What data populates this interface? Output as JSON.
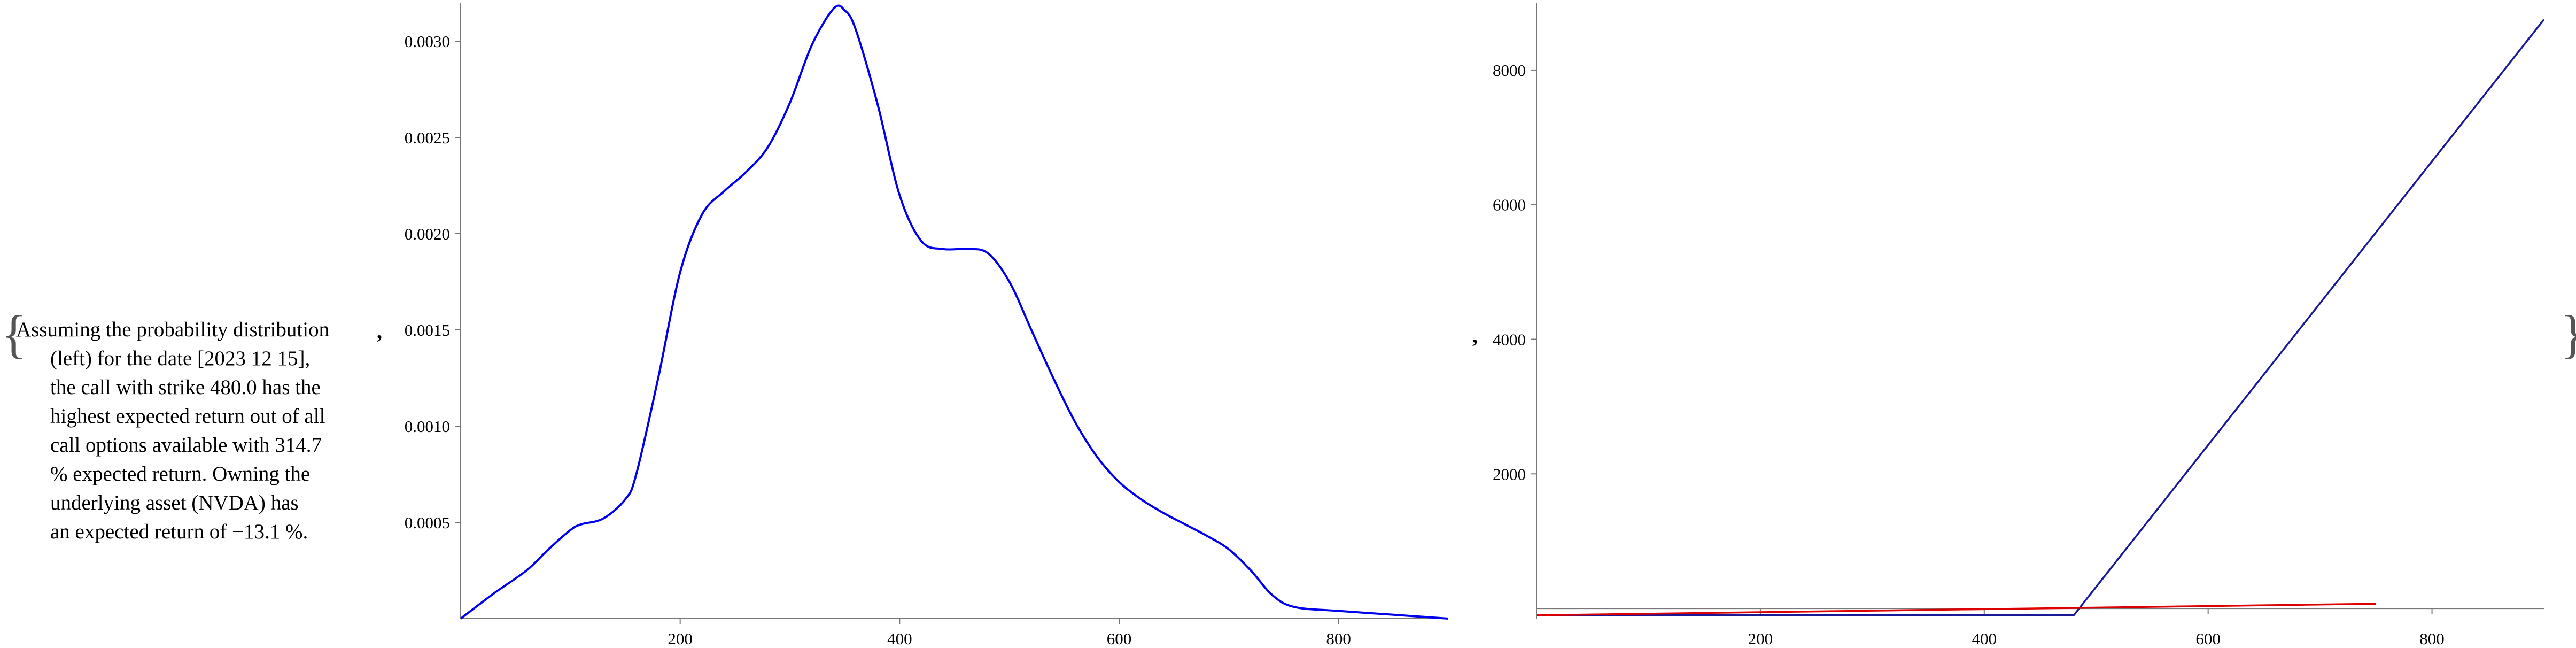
{
  "text": {
    "lines": [
      "Assuming the probability distribution",
      "(left) for the date [2023 12 15],",
      "the call with strike 480.0 has the",
      "highest expected return out of all",
      "call options available with 314.7",
      "% expected return. Owning the",
      "underlying asset (NVDA) has",
      "an expected return of −13.1 %."
    ],
    "open_brace": "{",
    "close_brace": "}",
    "separator": ","
  },
  "colors": {
    "density": "#0000ee",
    "payoff": "#1a1a99",
    "stock": "#dd0000",
    "axis": "#777777"
  },
  "chart_data": [
    {
      "type": "line",
      "title": "",
      "xlabel": "",
      "ylabel": "",
      "xlim": [
        0,
        900
      ],
      "ylim": [
        0,
        0.0032
      ],
      "x_ticks": [
        "200",
        "400",
        "600",
        "800"
      ],
      "y_ticks": [
        "0.0005",
        "0.0010",
        "0.0015",
        "0.0020",
        "0.0025",
        "0.0030"
      ],
      "series": [
        {
          "x": [
            0,
            30,
            60,
            80,
            100,
            110,
            130,
            150,
            160,
            180,
            200,
            220,
            240,
            260,
            280,
            300,
            320,
            340,
            350,
            360,
            380,
            400,
            420,
            440,
            460,
            480,
            500,
            520,
            540,
            560,
            580,
            600,
            620,
            640,
            660,
            680,
            700,
            720,
            740,
            760,
            800,
            850,
            900
          ],
          "y": [
            0.0,
            0.00013,
            0.00025,
            0.00036,
            0.00046,
            0.00049,
            0.00052,
            0.00062,
            0.00075,
            0.00125,
            0.0018,
            0.0021,
            0.00222,
            0.00232,
            0.00245,
            0.00268,
            0.00298,
            0.00317,
            0.00316,
            0.00306,
            0.00267,
            0.0022,
            0.00196,
            0.00192,
            0.00192,
            0.0019,
            0.00175,
            0.0015,
            0.00125,
            0.00102,
            0.00084,
            0.00071,
            0.00062,
            0.00055,
            0.00049,
            0.00043,
            0.00036,
            0.00025,
            0.00012,
            6e-05,
            4e-05,
            2e-05,
            0.0
          ]
        }
      ]
    },
    {
      "type": "line",
      "title": "",
      "xlabel": "",
      "ylabel": "",
      "xlim": [
        0,
        900
      ],
      "ylim": [
        -150,
        9000
      ],
      "x_ticks": [
        "200",
        "400",
        "600",
        "800"
      ],
      "y_ticks": [
        "2000",
        "4000",
        "6000",
        "8000"
      ],
      "series": [
        {
          "x": [
            0,
            480,
            900
          ],
          "y": [
            -100,
            -100,
            8750
          ]
        },
        {
          "x": [
            0,
            750
          ],
          "y": [
            -100,
            70
          ]
        }
      ]
    }
  ]
}
